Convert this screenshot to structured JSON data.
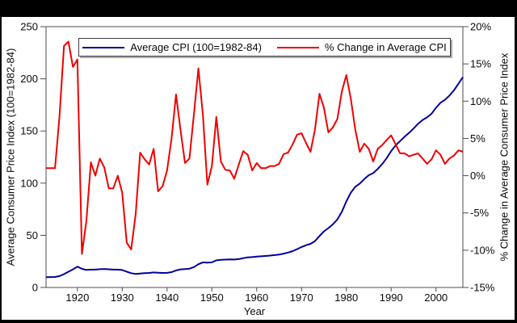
{
  "window": {
    "frame_color": "#000000",
    "canvas_color": "#ffffff"
  },
  "legend": {
    "items": [
      {
        "label": "Average CPI (100=1982-84)",
        "color": "#00009c"
      },
      {
        "label": "% Change in Average CPI",
        "color": "#ee0000"
      }
    ]
  },
  "chart_data": {
    "type": "line",
    "grid": false,
    "legend_position": "top-center",
    "x_axis": {
      "label": "Year",
      "min": 1913,
      "max": 2006,
      "ticks": [
        {
          "v": 1920,
          "label": "1920"
        },
        {
          "v": 1930,
          "label": "1930"
        },
        {
          "v": 1940,
          "label": "1940"
        },
        {
          "v": 1950,
          "label": "1950"
        },
        {
          "v": 1960,
          "label": "1960"
        },
        {
          "v": 1970,
          "label": "1970"
        },
        {
          "v": 1980,
          "label": "1980"
        },
        {
          "v": 1990,
          "label": "1990"
        },
        {
          "v": 2000,
          "label": "2000"
        }
      ]
    },
    "left_axis": {
      "label": "Average Consumer Price Index (100=1982-84)",
      "min": 0,
      "max": 250,
      "ticks": [
        {
          "v": 0,
          "label": "0"
        },
        {
          "v": 50,
          "label": "50"
        },
        {
          "v": 100,
          "label": "100"
        },
        {
          "v": 150,
          "label": "150"
        },
        {
          "v": 200,
          "label": "200"
        },
        {
          "v": 250,
          "label": "250"
        }
      ]
    },
    "right_axis": {
      "label": "% Change in Average Consumer Price Index",
      "min": -15,
      "max": 20,
      "ticks": [
        {
          "v": 20,
          "label": "20%"
        },
        {
          "v": 15,
          "label": "15%"
        },
        {
          "v": 10,
          "label": "10%"
        },
        {
          "v": 5,
          "label": "5%"
        },
        {
          "v": 0,
          "label": "0%"
        },
        {
          "v": -5,
          "label": "-5%"
        },
        {
          "v": -10,
          "label": "-10%"
        },
        {
          "v": -15,
          "label": "-15%"
        }
      ]
    },
    "years": [
      1913,
      1914,
      1915,
      1916,
      1917,
      1918,
      1919,
      1920,
      1921,
      1922,
      1923,
      1924,
      1925,
      1926,
      1927,
      1928,
      1929,
      1930,
      1931,
      1932,
      1933,
      1934,
      1935,
      1936,
      1937,
      1938,
      1939,
      1940,
      1941,
      1942,
      1943,
      1944,
      1945,
      1946,
      1947,
      1948,
      1949,
      1950,
      1951,
      1952,
      1953,
      1954,
      1955,
      1956,
      1957,
      1958,
      1959,
      1960,
      1961,
      1962,
      1963,
      1964,
      1965,
      1966,
      1967,
      1968,
      1969,
      1970,
      1971,
      1972,
      1973,
      1974,
      1975,
      1976,
      1977,
      1978,
      1979,
      1980,
      1981,
      1982,
      1983,
      1984,
      1985,
      1986,
      1987,
      1988,
      1989,
      1990,
      1991,
      1992,
      1993,
      1994,
      1995,
      1996,
      1997,
      1998,
      1999,
      2000,
      2001,
      2002,
      2003,
      2004,
      2005,
      2006
    ],
    "series": [
      {
        "name": "Average CPI (100=1982-84)",
        "axis": "left",
        "color": "#00009c",
        "values": [
          9.9,
          10,
          10.1,
          10.9,
          12.8,
          15.1,
          17.3,
          20,
          17.9,
          16.8,
          17.1,
          17.1,
          17.5,
          17.7,
          17.4,
          17.1,
          17.1,
          16.7,
          15.2,
          13.7,
          13,
          13.4,
          13.7,
          13.9,
          14.4,
          14.1,
          13.9,
          14,
          14.7,
          16.3,
          17.3,
          17.6,
          18,
          19.5,
          22.3,
          24.1,
          23.8,
          24.1,
          26,
          26.5,
          26.7,
          26.9,
          26.8,
          27.2,
          28.1,
          28.9,
          29.1,
          29.6,
          29.9,
          30.2,
          30.6,
          31,
          31.5,
          32.4,
          33.4,
          34.8,
          36.7,
          38.8,
          40.5,
          41.8,
          44.4,
          49.3,
          53.8,
          56.9,
          60.6,
          65.2,
          72.6,
          82.4,
          90.9,
          96.5,
          99.6,
          103.9,
          107.6,
          109.6,
          113.6,
          118.3,
          124,
          130.7,
          136.2,
          140.3,
          144.5,
          148.2,
          152.4,
          156.9,
          160.5,
          163,
          166.6,
          172.2,
          177.1,
          179.9,
          184,
          188.9,
          195.3,
          201.6
        ]
      },
      {
        "name": "% Change in Average CPI",
        "axis": "right",
        "color": "#ee0000",
        "values": [
          1,
          1,
          1,
          7.9,
          17.4,
          18,
          14.6,
          15.6,
          -10.5,
          -6.1,
          1.8,
          0,
          2.3,
          1.1,
          -1.7,
          -1.7,
          0,
          -2.3,
          -9,
          -9.9,
          -5.1,
          3.1,
          2.2,
          1.5,
          3.6,
          -2.1,
          -1.4,
          0.7,
          5,
          10.9,
          6.1,
          1.7,
          2.3,
          8.3,
          14.4,
          8.1,
          -1.2,
          1.3,
          7.9,
          1.9,
          0.8,
          0.7,
          -0.4,
          1.5,
          3.3,
          2.8,
          0.7,
          1.7,
          1,
          1,
          1.3,
          1.3,
          1.6,
          2.9,
          3.1,
          4.2,
          5.5,
          5.7,
          4.4,
          3.2,
          6.2,
          11,
          9.1,
          5.8,
          6.5,
          7.6,
          11.3,
          13.5,
          10.3,
          6.2,
          3.2,
          4.3,
          3.6,
          1.9,
          3.6,
          4.1,
          4.8,
          5.4,
          4.2,
          3,
          3,
          2.6,
          2.8,
          3,
          2.3,
          1.6,
          2.2,
          3.4,
          2.8,
          1.6,
          2.3,
          2.7,
          3.4,
          3.2
        ]
      }
    ]
  }
}
